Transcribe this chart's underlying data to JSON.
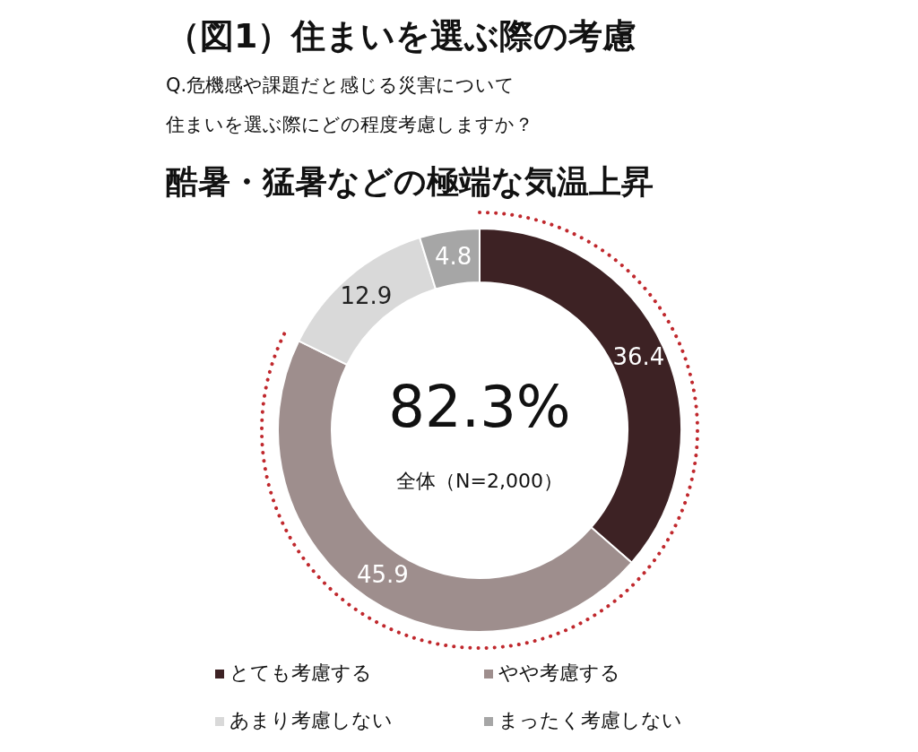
{
  "chart_data": {
    "type": "donut",
    "title": "（図1）住まいを選ぶ際の考慮",
    "subtitle": "Q.危機感や課題だと感じる災害について",
    "annotations": [
      "酷暑・猛暑などの極端な気温上昇",
      "82.3%",
      "全体（N=2,000）",
      "住まいを選ぶ際にどの程度考慮しますか？"
    ],
    "categories": [
      "とても考慮する",
      "やや考慮する",
      "あまり考慮しない",
      "まったく考慮しない"
    ],
    "values": [
      36.4,
      45.9,
      12.9,
      4.8
    ],
    "colors": [
      "#3d2224",
      "#9e8e8d",
      "#d9d9d9",
      "#a6a6a6"
    ],
    "data_labels": true,
    "legend": "bottom"
  }
}
